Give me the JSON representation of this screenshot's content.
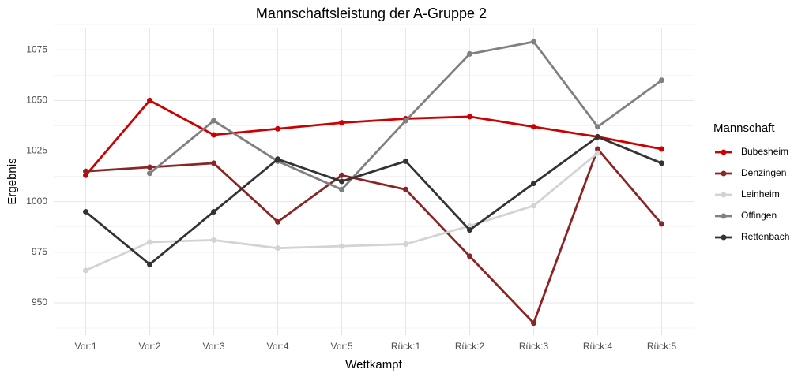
{
  "chart_data": {
    "type": "line",
    "title": "Mannschaftsleistung der A-Gruppe 2",
    "x_label": "Wettkampf",
    "y_label": "Ergebnis",
    "legend_title": "Mannschaft",
    "legend_position": "right",
    "grid": true,
    "categories": [
      "Vor:1",
      "Vor:2",
      "Vor:3",
      "Vor:4",
      "Vor:5",
      "Rück:1",
      "Rück:2",
      "Rück:3",
      "Rück:4",
      "Rück:5"
    ],
    "ylim": [
      934,
      1086
    ],
    "yticks": [
      950,
      975,
      1000,
      1025,
      1050,
      1075
    ],
    "series": [
      {
        "name": "Bubesheim",
        "color": "#cc0000",
        "values": [
          1013,
          1050,
          1033,
          1036,
          1039,
          1041,
          1042,
          1037,
          1032,
          1026
        ]
      },
      {
        "name": "Denzingen",
        "color": "#8b2525",
        "values": [
          1015,
          1017,
          1019,
          990,
          1013,
          1006,
          973,
          940,
          1026,
          989
        ]
      },
      {
        "name": "Leinheim",
        "color": "#d3d3d3",
        "values": [
          966,
          980,
          981,
          977,
          978,
          979,
          988,
          998,
          1024,
          null
        ]
      },
      {
        "name": "Offingen",
        "color": "#808080",
        "values": [
          null,
          1014,
          1040,
          1020,
          1006,
          1040,
          1073,
          1079,
          1037,
          1060
        ]
      },
      {
        "name": "Rettenbach",
        "color": "#333333",
        "values": [
          995,
          969,
          995,
          1021,
          1010,
          1020,
          986,
          1009,
          1032,
          1019
        ]
      }
    ]
  }
}
